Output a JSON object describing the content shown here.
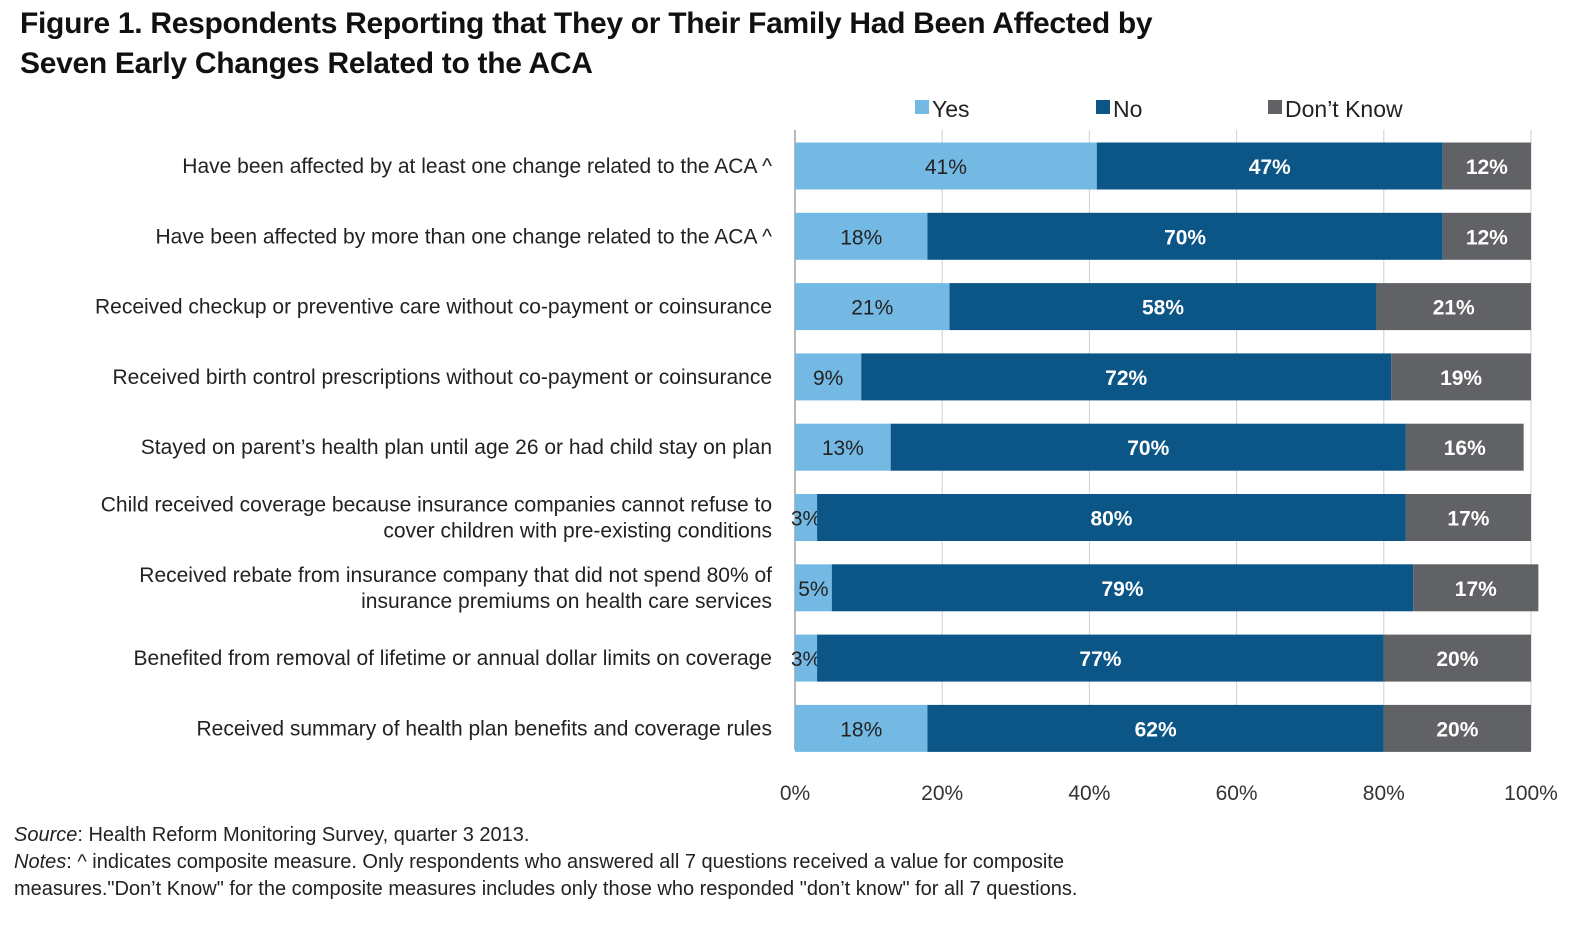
{
  "title_line1": "Figure 1. Respondents Reporting that They or Their Family Had Been Affected by",
  "title_line2": "Seven Early Changes Related to the ACA",
  "chart_data": {
    "type": "bar",
    "orientation": "horizontal",
    "stacked": true,
    "title": "Figure 1. Respondents Reporting that They or Their Family Had Been Affected by Seven Early Changes Related to the ACA",
    "categories": [
      [
        "Have been affected by at least one change related to the ACA ^"
      ],
      [
        "Have been affected by more than one change related to the ACA ^"
      ],
      [
        "Received checkup or preventive care without co-payment or coinsurance"
      ],
      [
        "Received birth control prescriptions without co-payment or coinsurance"
      ],
      [
        "Stayed on parent’s health plan until age 26 or had child stay on plan"
      ],
      [
        "Child received coverage because insurance companies cannot refuse to",
        "cover children with pre-existing conditions"
      ],
      [
        "Received rebate from insurance company that did not spend 80% of",
        "insurance premiums on health care services"
      ],
      [
        "Benefited from removal of lifetime or annual dollar limits on coverage"
      ],
      [
        "Received summary of health plan benefits and coverage rules"
      ]
    ],
    "series": [
      {
        "name": "Yes",
        "color": "#74b9e4",
        "label_color": "#222222",
        "label_bold": false,
        "values": [
          41,
          18,
          21,
          9,
          13,
          3,
          5,
          3,
          18
        ]
      },
      {
        "name": "No",
        "color": "#0b5587",
        "label_color": "#ffffff",
        "label_bold": true,
        "values": [
          47,
          70,
          58,
          72,
          70,
          80,
          79,
          77,
          62
        ]
      },
      {
        "name": "Don’t Know",
        "color": "#616265",
        "label_color": "#ffffff",
        "label_bold": true,
        "values": [
          12,
          12,
          21,
          19,
          16,
          17,
          17,
          20,
          20
        ]
      }
    ],
    "xlim": [
      0,
      100
    ],
    "xticks": [
      0,
      20,
      40,
      60,
      80,
      100
    ],
    "xtick_labels": [
      "0%",
      "20%",
      "40%",
      "60%",
      "80%",
      "100%"
    ],
    "grid": true,
    "legend_position": "top"
  },
  "footer": {
    "source_label": "Source",
    "source_text": ": Health Reform Monitoring Survey, quarter 3 2013.",
    "notes_label": "Notes",
    "notes_text1": ": ^ indicates composite measure. Only respondents who answered all 7 questions received a value for composite",
    "notes_text2": "measures.\"Don’t Know\" for the composite measures includes only those who responded \"don’t know\" for all 7 questions."
  }
}
